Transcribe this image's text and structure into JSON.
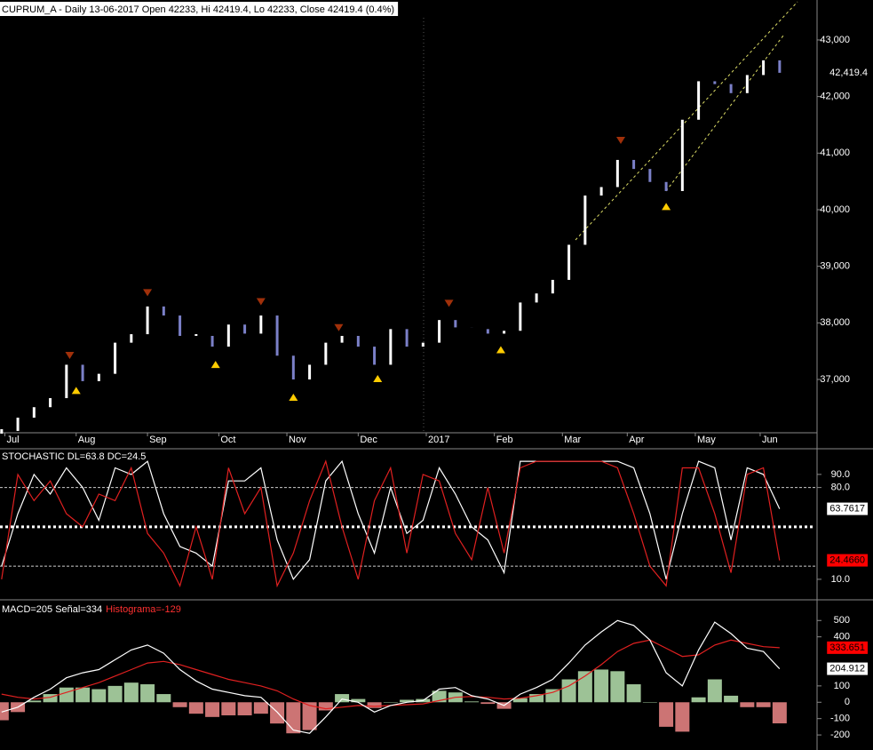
{
  "chart_data": [
    {
      "type": "price-bars",
      "title": "CUPRUM_A - Daily 13-06-2017 Open 42233, Hi 42419.4, Lo 42233, Close 42419.4 (0.4%)",
      "x": [
        0,
        5,
        10,
        15,
        20,
        25,
        30,
        35,
        40,
        45,
        50,
        55,
        60,
        65,
        70,
        75,
        80,
        85,
        90,
        95,
        100,
        105,
        110,
        115,
        120,
        125,
        130,
        135,
        140,
        145,
        150,
        155,
        160,
        165,
        170,
        175,
        180,
        185,
        190,
        195,
        200,
        205,
        210,
        215,
        220,
        225,
        230,
        235,
        240
      ],
      "values": [
        36090,
        36325,
        36510,
        36670,
        37260,
        36970,
        37100,
        37650,
        37800,
        38290,
        38130,
        37770,
        37770,
        37580,
        37970,
        37810,
        38130,
        37420,
        37000,
        37260,
        37650,
        37770,
        37580,
        37260,
        37890,
        37580,
        37650,
        38050,
        37920,
        37890,
        37810,
        37860,
        38360,
        38520,
        38760,
        39380,
        40250,
        40400,
        40880,
        40720,
        40490,
        40330,
        41590,
        42270,
        42220,
        42060,
        42380,
        42640,
        42419.4
      ],
      "last_label": "42,419.4",
      "up_color": "#ffffff",
      "down_color": "#7b80c8",
      "xlim": [
        -0.5,
        251
      ],
      "xticks": [
        {
          "value": 1,
          "label": "Jul"
        },
        {
          "value": 23,
          "label": "Aug"
        },
        {
          "value": 45,
          "label": "Sep"
        },
        {
          "value": 67,
          "label": "Oct"
        },
        {
          "value": 88,
          "label": "Nov"
        },
        {
          "value": 110,
          "label": "Dec"
        },
        {
          "value": 131,
          "label": "2017"
        },
        {
          "value": 152,
          "label": "Feb"
        },
        {
          "value": 173,
          "label": "Mar"
        },
        {
          "value": 193,
          "label": "Apr"
        },
        {
          "value": 214,
          "label": "May"
        },
        {
          "value": 234,
          "label": "Jun"
        }
      ],
      "ylim": [
        36058,
        43706
      ],
      "yticks": [
        {
          "value": 37000,
          "label": "37,000"
        },
        {
          "value": 38000,
          "label": "38,000"
        },
        {
          "value": 39000,
          "label": "39,000"
        },
        {
          "value": 40000,
          "label": "40,000"
        },
        {
          "value": 41000,
          "label": "41,000"
        },
        {
          "value": 42000,
          "label": "42,000"
        },
        {
          "value": 43000,
          "label": "43,000"
        }
      ],
      "signals": [
        {
          "x": 23,
          "y": 36900,
          "dir": "up"
        },
        {
          "x": 66,
          "y": 37360,
          "dir": "up"
        },
        {
          "x": 90,
          "y": 36780,
          "dir": "up"
        },
        {
          "x": 116,
          "y": 37110,
          "dir": "up"
        },
        {
          "x": 154,
          "y": 37620,
          "dir": "up"
        },
        {
          "x": 205,
          "y": 40150,
          "dir": "up"
        },
        {
          "x": 21,
          "y": 37330,
          "dir": "down"
        },
        {
          "x": 45,
          "y": 38440,
          "dir": "down"
        },
        {
          "x": 80,
          "y": 38280,
          "dir": "down"
        },
        {
          "x": 104,
          "y": 37820,
          "dir": "down"
        },
        {
          "x": 138,
          "y": 38250,
          "dir": "down"
        },
        {
          "x": 191,
          "y": 41130,
          "dir": "down"
        }
      ],
      "up_signal_color": "#ffcc00",
      "down_signal_color": "#a0300a"
    },
    {
      "type": "oscillator",
      "title": "STOCHASTIC DL=63.8 DC=24.5",
      "x": [
        0,
        5,
        10,
        15,
        20,
        25,
        30,
        35,
        40,
        45,
        50,
        55,
        60,
        65,
        70,
        75,
        80,
        85,
        90,
        95,
        100,
        105,
        110,
        115,
        120,
        125,
        130,
        135,
        140,
        145,
        150,
        155,
        160,
        165,
        170,
        175,
        180,
        185,
        190,
        195,
        200,
        205,
        210,
        215,
        220,
        225,
        230,
        235,
        240
      ],
      "xlim": [
        -0.5,
        251
      ],
      "ylim": [
        -4.3,
        108.2
      ],
      "yticks": [
        {
          "value": 10,
          "label": "10.0"
        },
        {
          "value": 80,
          "label": "80.0"
        },
        {
          "value": 90,
          "label": "90.0"
        }
      ],
      "levels": [
        {
          "value": 80,
          "style": "dashed"
        },
        {
          "value": 50,
          "style": "dotted"
        },
        {
          "value": 20,
          "style": "dashed"
        }
      ],
      "series": [
        {
          "color": "#ffffff",
          "label_bg": "#ffffff",
          "label_fg": "#000000",
          "last_label": "63.7617",
          "values": [
            20,
            60,
            90,
            75,
            95,
            80,
            55,
            95,
            90,
            100,
            60,
            35,
            30,
            20,
            85,
            85,
            95,
            40,
            10,
            25,
            85,
            100,
            60,
            30,
            80,
            45,
            55,
            95,
            75,
            50,
            40,
            15,
            100,
            100,
            100,
            100,
            100,
            100,
            100,
            95,
            60,
            10,
            60,
            100,
            95,
            40,
            95,
            90,
            63.7617
          ]
        },
        {
          "color": "#e02020",
          "label_bg": "#ff0000",
          "label_fg": "#000000",
          "last_label": "24.4660",
          "values": [
            10,
            90,
            70,
            85,
            60,
            50,
            75,
            70,
            95,
            45,
            30,
            5,
            50,
            10,
            95,
            60,
            80,
            5,
            30,
            70,
            100,
            50,
            10,
            70,
            95,
            30,
            90,
            85,
            45,
            25,
            80,
            30,
            95,
            100,
            100,
            100,
            100,
            100,
            95,
            60,
            20,
            5,
            95,
            95,
            60,
            15,
            90,
            95,
            24.466
          ]
        }
      ]
    },
    {
      "type": "macd",
      "title": "MACD=205 Señal=334",
      "subtitle": "Histograma=-129",
      "x": [
        0,
        5,
        10,
        15,
        20,
        25,
        30,
        35,
        40,
        45,
        50,
        55,
        60,
        65,
        70,
        75,
        80,
        85,
        90,
        95,
        100,
        105,
        110,
        115,
        120,
        125,
        130,
        135,
        140,
        145,
        150,
        155,
        160,
        165,
        170,
        175,
        180,
        185,
        190,
        195,
        200,
        205,
        210,
        215,
        220,
        225,
        230,
        235,
        240
      ],
      "xlim": [
        -0.5,
        251
      ],
      "ylim": [
        -292,
        621
      ],
      "yticks": [
        -200,
        -100,
        0,
        100,
        400,
        500
      ],
      "histogram": {
        "pos_color": "#b8e4b0",
        "neg_color": "#f08888",
        "values": [
          -110,
          -60,
          10,
          50,
          90,
          90,
          80,
          100,
          120,
          110,
          50,
          -30,
          -70,
          -90,
          -80,
          -80,
          -70,
          -130,
          -190,
          -170,
          -50,
          50,
          20,
          -35,
          0,
          15,
          20,
          70,
          60,
          5,
          -10,
          -40,
          25,
          50,
          80,
          140,
          190,
          200,
          190,
          110,
          0,
          -150,
          -180,
          30,
          140,
          40,
          -30,
          -30,
          -129
        ]
      },
      "series": [
        {
          "color": "#e02020",
          "label_bg": "#ff0000",
          "label_fg": "#000000",
          "last_label": "333.651",
          "values": [
            50,
            30,
            20,
            30,
            60,
            90,
            120,
            160,
            200,
            240,
            250,
            230,
            200,
            170,
            140,
            120,
            100,
            70,
            20,
            -20,
            -40,
            -30,
            -20,
            -25,
            -20,
            -15,
            -10,
            10,
            30,
            35,
            30,
            20,
            25,
            40,
            60,
            100,
            160,
            230,
            310,
            360,
            380,
            330,
            280,
            290,
            350,
            380,
            360,
            340,
            333.651
          ]
        },
        {
          "color": "#ffffff",
          "label_bg": "#ffffff",
          "label_fg": "#000000",
          "last_label": "204.912",
          "values": [
            -60,
            -30,
            30,
            80,
            150,
            180,
            200,
            260,
            320,
            350,
            300,
            200,
            130,
            80,
            60,
            40,
            30,
            -60,
            -170,
            -190,
            -90,
            20,
            0,
            -60,
            -20,
            0,
            10,
            80,
            90,
            40,
            20,
            -20,
            50,
            90,
            140,
            240,
            350,
            430,
            500,
            470,
            380,
            180,
            100,
            320,
            490,
            420,
            330,
            310,
            204.912
          ]
        }
      ]
    }
  ]
}
